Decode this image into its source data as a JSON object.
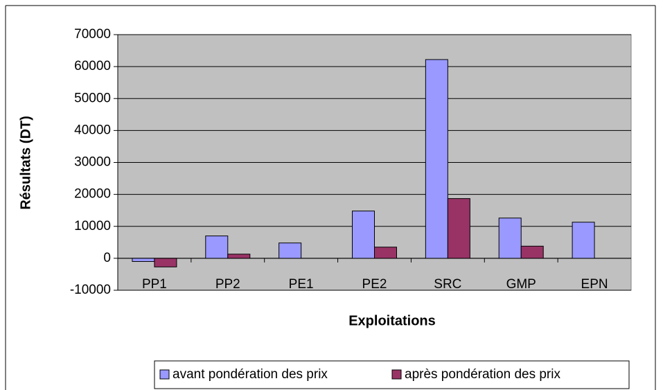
{
  "chart_data": {
    "type": "bar",
    "x_label": "Exploitations",
    "y_label": "Résultats (DT)",
    "categories": [
      "PP1",
      "PP2",
      "PE1",
      "PE2",
      "SRC",
      "GMP",
      "EPN"
    ],
    "series": [
      {
        "name": "avant pondération des prix",
        "color": "#9999ff",
        "values": [
          -1000,
          7000,
          4800,
          14800,
          62200,
          12600,
          11300
        ]
      },
      {
        "name": "après pondération des prix",
        "color": "#993366",
        "values": [
          -2700,
          1300,
          null,
          3500,
          18700,
          3800,
          null
        ]
      }
    ],
    "ylim": [
      -10000,
      70000
    ],
    "yticks": [
      -10000,
      0,
      10000,
      20000,
      30000,
      40000,
      50000,
      60000,
      70000
    ],
    "grid": true,
    "legend": "bottom"
  }
}
